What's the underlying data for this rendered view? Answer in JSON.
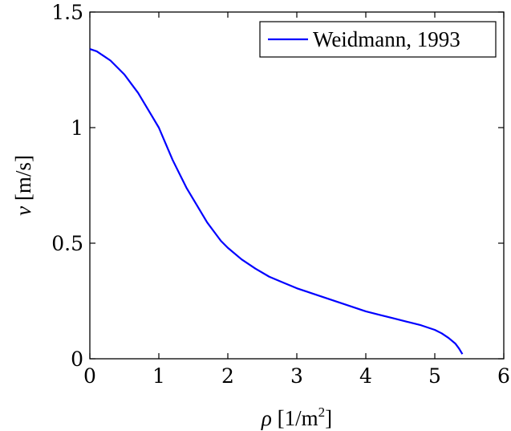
{
  "chart_data": {
    "type": "line",
    "title": "",
    "xlabel": {
      "symbol": "ρ",
      "unit_prefix": "[1/m",
      "unit_power": "2",
      "unit_suffix": "]"
    },
    "ylabel": {
      "symbol": "v",
      "unit": "[m/s]"
    },
    "xlim": [
      0,
      6
    ],
    "ylim": [
      0,
      1.5
    ],
    "x_ticks": [
      0,
      1,
      2,
      3,
      4,
      5,
      6
    ],
    "x_tick_labels": [
      "0",
      "1",
      "2",
      "3",
      "4",
      "5",
      "6"
    ],
    "y_ticks": [
      0,
      0.5,
      1,
      1.5
    ],
    "y_tick_labels": [
      "0",
      "0.5",
      "1",
      "1.5"
    ],
    "grid": false,
    "legend_position": "top-right",
    "series": [
      {
        "name": "Weidmann, 1993",
        "color": "#0000ff",
        "x": [
          0,
          0.1,
          0.2,
          0.3,
          0.4,
          0.5,
          0.6,
          0.7,
          0.8,
          0.9,
          1.0,
          1.1,
          1.2,
          1.3,
          1.4,
          1.5,
          1.6,
          1.7,
          1.8,
          1.9,
          2.0,
          2.2,
          2.4,
          2.6,
          2.8,
          3.0,
          3.2,
          3.4,
          3.6,
          3.8,
          4.0,
          4.2,
          4.4,
          4.6,
          4.8,
          5.0,
          5.1,
          5.2,
          5.3,
          5.35,
          5.4
        ],
        "y": [
          1.34,
          1.33,
          1.31,
          1.29,
          1.26,
          1.23,
          1.19,
          1.15,
          1.1,
          1.05,
          1.0,
          0.93,
          0.86,
          0.8,
          0.74,
          0.69,
          0.64,
          0.59,
          0.55,
          0.51,
          0.48,
          0.43,
          0.39,
          0.355,
          0.33,
          0.305,
          0.285,
          0.265,
          0.245,
          0.225,
          0.205,
          0.19,
          0.175,
          0.16,
          0.145,
          0.125,
          0.11,
          0.09,
          0.065,
          0.045,
          0.02
        ]
      }
    ]
  }
}
